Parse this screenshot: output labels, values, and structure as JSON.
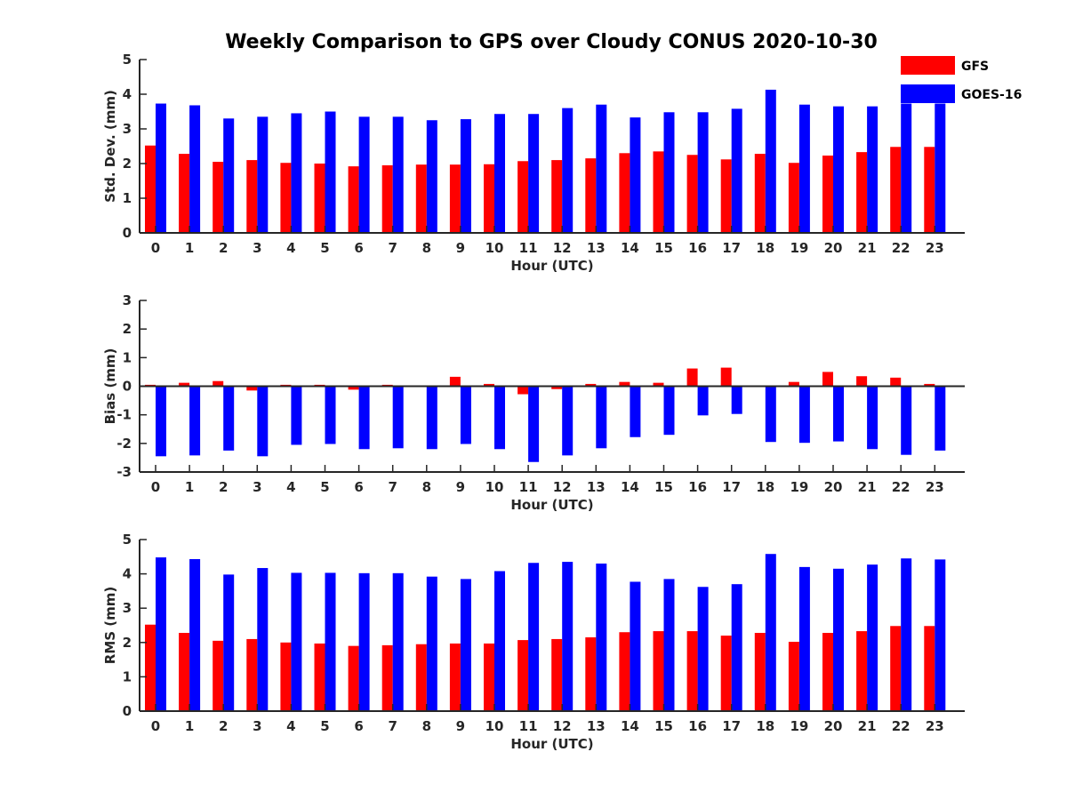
{
  "title": "Weekly Comparison to GPS over Cloudy CONUS 2020-10-30",
  "legend": [
    {
      "name": "GFS",
      "color": "#ff0000"
    },
    {
      "name": "GOES-16",
      "color": "#0000ff"
    }
  ],
  "chart_data": [
    {
      "type": "bar",
      "ylabel": "Std. Dev. (mm)",
      "xlabel": "Hour (UTC)",
      "ylim": [
        0,
        5
      ],
      "yticks": [
        "0",
        "1",
        "2",
        "3",
        "4",
        "5"
      ],
      "categories": [
        "0",
        "1",
        "2",
        "3",
        "4",
        "5",
        "6",
        "7",
        "8",
        "9",
        "10",
        "11",
        "12",
        "13",
        "14",
        "15",
        "16",
        "17",
        "18",
        "19",
        "20",
        "21",
        "22",
        "23"
      ],
      "series": [
        {
          "name": "GFS",
          "color": "#ff0000",
          "values": [
            2.52,
            2.28,
            2.05,
            2.1,
            2.02,
            2.0,
            1.92,
            1.95,
            1.97,
            1.97,
            1.98,
            2.07,
            2.1,
            2.15,
            2.3,
            2.35,
            2.25,
            2.12,
            2.28,
            2.02,
            2.23,
            2.33,
            2.48,
            2.48
          ]
        },
        {
          "name": "GOES-16",
          "color": "#0000ff",
          "values": [
            3.73,
            3.68,
            3.3,
            3.35,
            3.45,
            3.5,
            3.35,
            3.35,
            3.25,
            3.28,
            3.43,
            3.43,
            3.6,
            3.7,
            3.33,
            3.48,
            3.48,
            3.58,
            4.13,
            3.7,
            3.65,
            3.65,
            3.73,
            3.73
          ]
        }
      ]
    },
    {
      "type": "bar",
      "ylabel": "Bias (mm)",
      "xlabel": "Hour (UTC)",
      "ylim": [
        -3,
        3
      ],
      "yticks": [
        "-3",
        "-2",
        "-1",
        "0",
        "1",
        "2",
        "3"
      ],
      "categories": [
        "0",
        "1",
        "2",
        "3",
        "4",
        "5",
        "6",
        "7",
        "8",
        "9",
        "10",
        "11",
        "12",
        "13",
        "14",
        "15",
        "16",
        "17",
        "18",
        "19",
        "20",
        "21",
        "22",
        "23"
      ],
      "series": [
        {
          "name": "GFS",
          "color": "#ff0000",
          "values": [
            0.05,
            0.12,
            0.18,
            -0.15,
            0.05,
            0.05,
            -0.12,
            0.05,
            0.02,
            0.33,
            0.08,
            -0.28,
            -0.1,
            0.08,
            0.15,
            0.12,
            0.62,
            0.65,
            0.02,
            0.15,
            0.5,
            0.35,
            0.3,
            0.08
          ]
        },
        {
          "name": "GOES-16",
          "color": "#0000ff",
          "values": [
            -2.45,
            -2.42,
            -2.25,
            -2.45,
            -2.05,
            -2.02,
            -2.2,
            -2.17,
            -2.2,
            -2.02,
            -2.2,
            -2.65,
            -2.42,
            -2.17,
            -1.78,
            -1.7,
            -1.02,
            -0.97,
            -1.95,
            -1.98,
            -1.93,
            -2.2,
            -2.4,
            -2.25
          ]
        }
      ]
    },
    {
      "type": "bar",
      "ylabel": "RMS (mm)",
      "xlabel": "Hour (UTC)",
      "ylim": [
        0,
        5
      ],
      "yticks": [
        "0",
        "1",
        "2",
        "3",
        "4",
        "5"
      ],
      "categories": [
        "0",
        "1",
        "2",
        "3",
        "4",
        "5",
        "6",
        "7",
        "8",
        "9",
        "10",
        "11",
        "12",
        "13",
        "14",
        "15",
        "16",
        "17",
        "18",
        "19",
        "20",
        "21",
        "22",
        "23"
      ],
      "series": [
        {
          "name": "GFS",
          "color": "#ff0000",
          "values": [
            2.52,
            2.28,
            2.05,
            2.1,
            2.0,
            1.97,
            1.9,
            1.92,
            1.95,
            1.97,
            1.97,
            2.07,
            2.1,
            2.15,
            2.3,
            2.33,
            2.33,
            2.2,
            2.28,
            2.02,
            2.28,
            2.33,
            2.48,
            2.48
          ]
        },
        {
          "name": "GOES-16",
          "color": "#0000ff",
          "values": [
            4.48,
            4.43,
            3.98,
            4.17,
            4.03,
            4.03,
            4.02,
            4.02,
            3.92,
            3.85,
            4.08,
            4.32,
            4.35,
            4.3,
            3.77,
            3.85,
            3.62,
            3.7,
            4.58,
            4.2,
            4.15,
            4.27,
            4.45,
            4.42
          ]
        }
      ]
    }
  ]
}
